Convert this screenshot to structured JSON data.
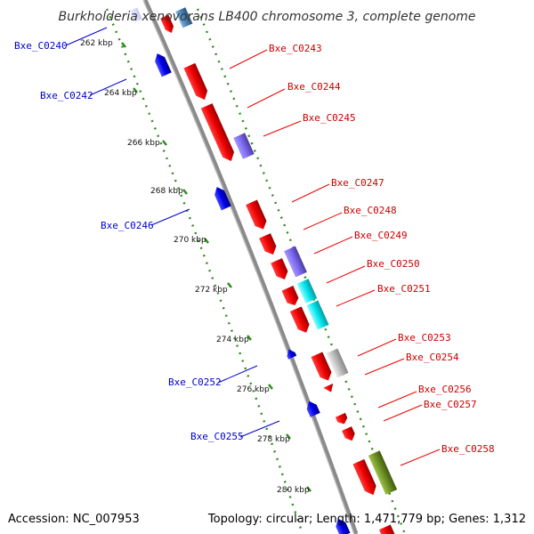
{
  "title": "Burkholderia xenovorans LB400 chromosome 3, complete genome",
  "footer": {
    "accession": "Accession: NC_007953",
    "summary": "Topology: circular; Length: 1,471,779 bp; Genes: 1,312"
  },
  "colors": {
    "background": "#ffffff",
    "backbone": "#8a8a8a",
    "tick": "#2e8b1e",
    "forward_label": "#cc0000",
    "reverse_label": "#0000cc",
    "gene_red": "#ee0000",
    "gene_blue": "#0000ee",
    "gene_purple": "#7b68ee",
    "gene_cyan": "#00e5ee",
    "gene_gray": "#bbbbbb",
    "gene_olive": "#6b8e23",
    "gene_steelblue": "#4682b4"
  },
  "ticks": [
    "262 kbp",
    "264 kbp",
    "266 kbp",
    "268 kbp",
    "270 kbp",
    "272 kbp",
    "274 kbp",
    "276 kbp",
    "278 kbp",
    "280 kbp"
  ],
  "labels": {
    "forward": [
      "Bxe_C0243",
      "Bxe_C0244",
      "Bxe_C0245",
      "Bxe_C0247",
      "Bxe_C0248",
      "Bxe_C0249",
      "Bxe_C0250",
      "Bxe_C0251",
      "Bxe_C0253",
      "Bxe_C0254",
      "Bxe_C0256",
      "Bxe_C0257",
      "Bxe_C0258"
    ],
    "reverse": [
      "Bxe_C0240",
      "Bxe_C0242",
      "Bxe_C0246",
      "Bxe_C0252",
      "Bxe_C0255"
    ]
  }
}
